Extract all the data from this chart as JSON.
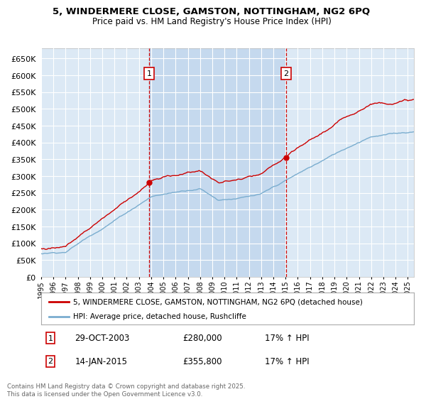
{
  "title": "5, WINDERMERE CLOSE, GAMSTON, NOTTINGHAM, NG2 6PQ",
  "subtitle": "Price paid vs. HM Land Registry's House Price Index (HPI)",
  "ylim": [
    0,
    680000
  ],
  "yticks": [
    0,
    50000,
    100000,
    150000,
    200000,
    250000,
    300000,
    350000,
    400000,
    450000,
    500000,
    550000,
    600000,
    650000
  ],
  "xlim_start": 1995.0,
  "xlim_end": 2025.5,
  "bg_color": "#dce9f5",
  "grid_color": "#ffffff",
  "line_color_red": "#cc0000",
  "line_color_blue": "#7aadcf",
  "shade_color": "#c5d9ee",
  "sale1_date": 2003.83,
  "sale1_price": 280000,
  "sale2_date": 2015.04,
  "sale2_price": 355800,
  "legend_line1": "5, WINDERMERE CLOSE, GAMSTON, NOTTINGHAM, NG2 6PQ (detached house)",
  "legend_line2": "HPI: Average price, detached house, Rushcliffe",
  "annotation1_date": "29-OCT-2003",
  "annotation1_price": "£280,000",
  "annotation1_hpi": "17% ↑ HPI",
  "annotation2_date": "14-JAN-2015",
  "annotation2_price": "£355,800",
  "annotation2_hpi": "17% ↑ HPI",
  "footer": "Contains HM Land Registry data © Crown copyright and database right 2025.\nThis data is licensed under the Open Government Licence v3.0."
}
